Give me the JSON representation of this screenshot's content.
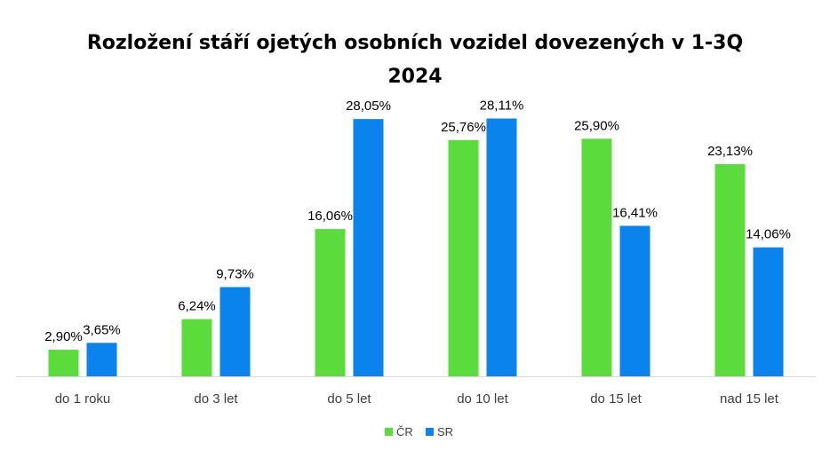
{
  "chart_data": {
    "type": "bar",
    "title": "Rozložení stáří ojetých osobních vozidel dovezených v 1-3Q 2024",
    "categories": [
      "do 1 roku",
      "do 3 let",
      "do 5 let",
      "do 10 let",
      "do 15 let",
      "nad 15 let"
    ],
    "series": [
      {
        "name": "ČR",
        "color": "#5BDB3C",
        "values": [
          2.9,
          6.24,
          16.06,
          25.76,
          25.9,
          23.13
        ],
        "labels": [
          "2,90%",
          "6,24%",
          "16,06%",
          "25,76%",
          "25,90%",
          "23,13%"
        ]
      },
      {
        "name": "SR",
        "color": "#0A84EC",
        "values": [
          3.65,
          9.73,
          28.05,
          28.11,
          16.41,
          14.06
        ],
        "labels": [
          "3,65%",
          "9,73%",
          "28,05%",
          "28,11%",
          "16,41%",
          "14,06%"
        ]
      }
    ],
    "ylim": [
      0,
      30
    ],
    "xlabel": "",
    "ylabel": "",
    "grid": false,
    "legend_position": "bottom"
  }
}
